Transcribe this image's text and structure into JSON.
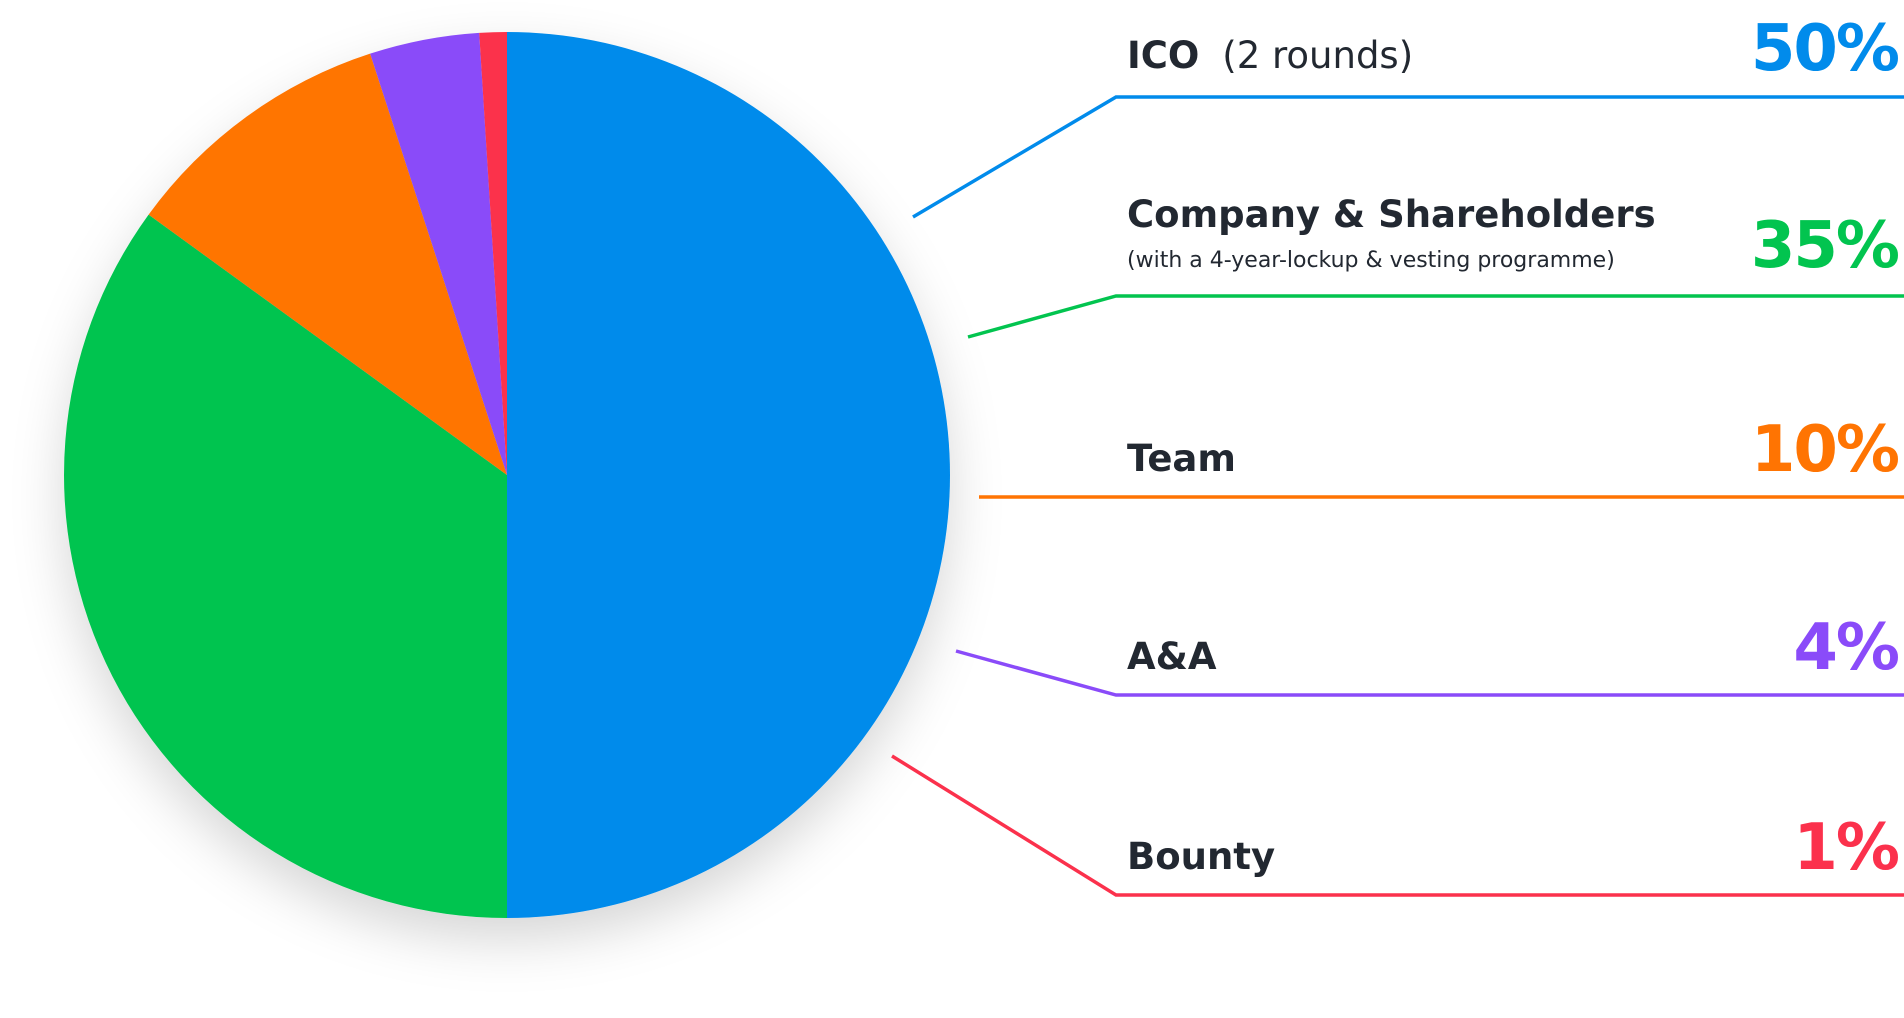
{
  "chart_data": {
    "type": "pie",
    "title": "",
    "start_angle": "12 o'clock",
    "direction": "clockwise",
    "slices": [
      {
        "key": "ico",
        "label": "ICO",
        "qualifier": "(2 rounds)",
        "sublabel": "",
        "value": 50,
        "pct_label": "50%",
        "color": "#018BEB"
      },
      {
        "key": "company",
        "label": "Company & Shareholders",
        "qualifier": "",
        "sublabel": "(with a 4-year-lockup & vesting programme)",
        "value": 35,
        "pct_label": "35%",
        "color": "#02C44F"
      },
      {
        "key": "team",
        "label": "Team",
        "qualifier": "",
        "sublabel": "",
        "value": 10,
        "pct_label": "10%",
        "color": "#FF7402"
      },
      {
        "key": "aa",
        "label": "A&A",
        "qualifier": "",
        "sublabel": "",
        "value": 4,
        "pct_label": "4%",
        "color": "#8A4BF9"
      },
      {
        "key": "bounty",
        "label": "Bounty",
        "qualifier": "",
        "sublabel": "",
        "value": 1,
        "pct_label": "1%",
        "color": "#FB314C"
      }
    ]
  }
}
